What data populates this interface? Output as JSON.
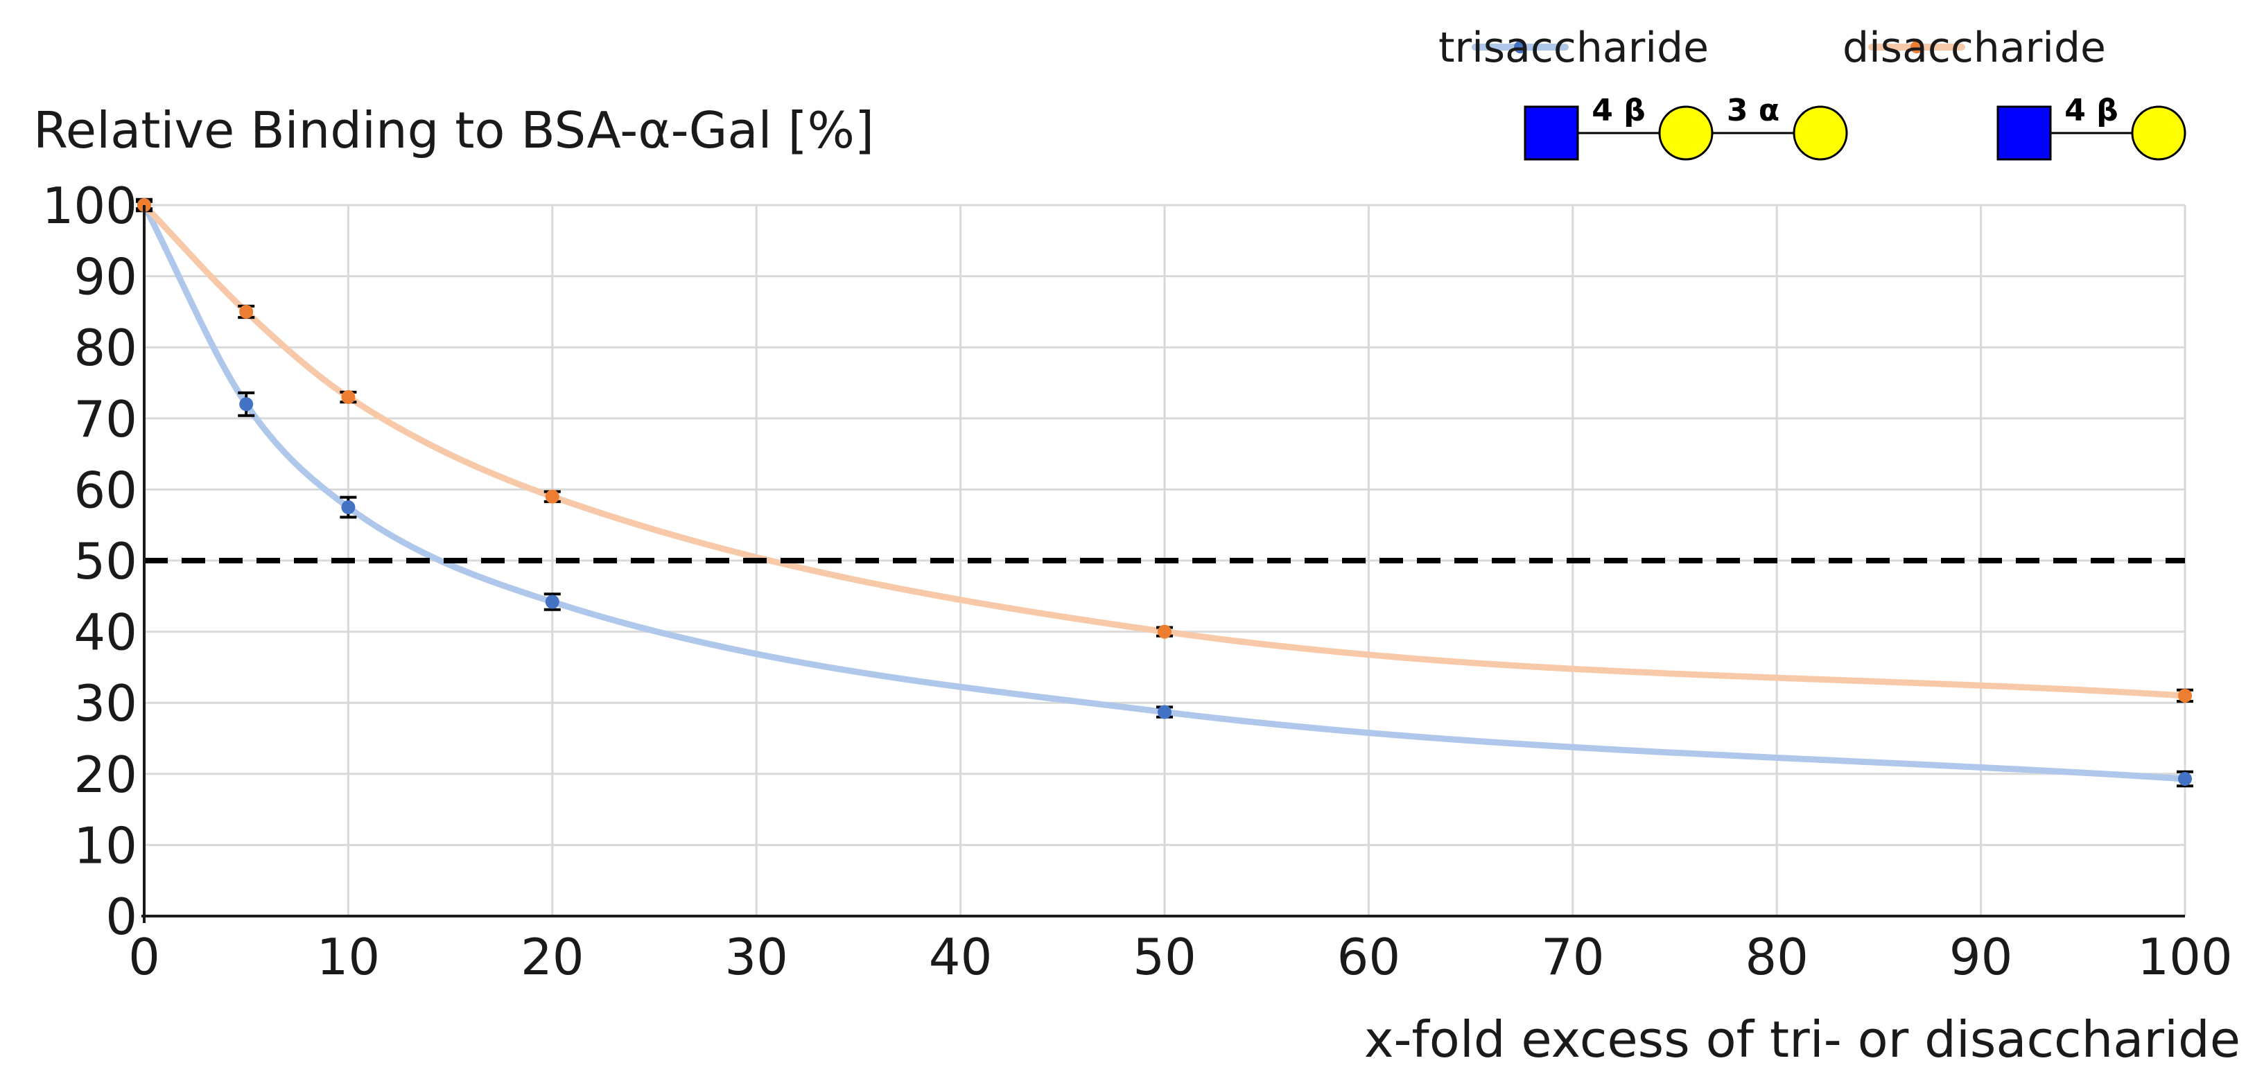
{
  "chart_data": {
    "type": "scatter",
    "title": "Relative Binding to BSA-α-Gal  [%]",
    "xlabel": "x-fold excess of tri- or disaccharide",
    "ylabel": "Relative Binding to BSA-α-Gal  [%]",
    "xlim": [
      0,
      100
    ],
    "ylim": [
      0,
      100
    ],
    "x_ticks": [
      0,
      10,
      20,
      30,
      40,
      50,
      60,
      70,
      80,
      90,
      100
    ],
    "y_ticks": [
      0,
      10,
      20,
      30,
      40,
      50,
      60,
      70,
      80,
      90,
      100
    ],
    "grid": true,
    "legend_position": "top-right",
    "reference_line": {
      "y": 50,
      "style": "dashed",
      "color": "#000000"
    },
    "series": [
      {
        "name": "trisaccharide",
        "color": "#4472c4",
        "line_color": "#aec7ea",
        "x": [
          0,
          5,
          10,
          20,
          50,
          100
        ],
        "values": [
          100,
          72,
          57.5,
          44.2,
          28.7,
          19.3
        ],
        "errors": [
          0.8,
          1.6,
          1.4,
          1.1,
          0.7,
          1.0
        ],
        "glycan": {
          "residues": [
            {
              "shape": "square",
              "color": "#0000ff"
            },
            {
              "shape": "circle",
              "color": "#ffff00"
            },
            {
              "shape": "circle",
              "color": "#ffff00"
            }
          ],
          "linkages": [
            "4 β",
            "3 α"
          ]
        }
      },
      {
        "name": "disaccharide",
        "color": "#ed7d31",
        "line_color": "#f8c9a8",
        "x": [
          0,
          5,
          10,
          20,
          50,
          100
        ],
        "values": [
          100,
          85,
          73,
          59,
          40,
          31
        ],
        "errors": [
          0.5,
          0.8,
          0.7,
          0.7,
          0.6,
          0.8
        ],
        "glycan": {
          "residues": [
            {
              "shape": "square",
              "color": "#0000ff"
            },
            {
              "shape": "circle",
              "color": "#ffff00"
            }
          ],
          "linkages": [
            "4 β"
          ]
        }
      }
    ]
  }
}
